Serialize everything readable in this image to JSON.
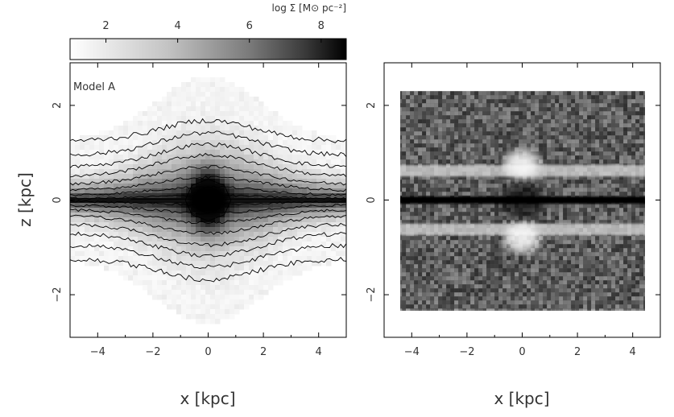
{
  "chart_data": [
    {
      "type": "heatmap",
      "annotation": "Model A",
      "xlabel": "x [kpc]",
      "ylabel": "z [kpc]",
      "xlim": [
        -5,
        5
      ],
      "ylim": [
        -2.9,
        2.9
      ],
      "x_ticks": [
        -4,
        -2,
        0,
        2,
        4
      ],
      "y_ticks": [
        -2,
        0,
        2
      ],
      "x_tick_labels": [
        "−4",
        "−2",
        "0",
        "2",
        "4"
      ],
      "y_tick_labels": [
        "−2",
        "0",
        "2"
      ],
      "colorbar": {
        "label": "log Σ [M⊙ pc⁻²]",
        "range": [
          1,
          8.7
        ],
        "ticks": [
          2,
          4,
          6,
          8
        ],
        "tick_labels": [
          "2",
          "4",
          "6",
          "8"
        ],
        "colormap": "white-to-black"
      },
      "contours": {
        "half_widths_kpc": [
          0.7,
          1.0,
          1.3,
          1.6,
          1.85,
          2.1
        ],
        "lines": [
          {
            "z_edge": 0.03,
            "z_peak": 0.1
          },
          {
            "z_edge": 0.1,
            "z_peak": 0.28
          },
          {
            "z_edge": 0.2,
            "z_peak": 0.48
          },
          {
            "z_edge": 0.33,
            "z_peak": 0.7
          },
          {
            "z_edge": 0.5,
            "z_peak": 0.95
          },
          {
            "z_edge": 0.7,
            "z_peak": 1.18
          },
          {
            "z_edge": 0.95,
            "z_peak": 1.42
          },
          {
            "z_edge": 1.25,
            "z_peak": 1.68
          }
        ]
      }
    },
    {
      "type": "heatmap",
      "xlabel": "x [kpc]",
      "ylabel": "",
      "xlim": [
        -5,
        5
      ],
      "ylim": [
        -2.9,
        2.9
      ],
      "x_ticks": [
        -4,
        -2,
        0,
        2,
        4
      ],
      "y_ticks": [
        -2,
        0,
        2
      ],
      "x_tick_labels": [
        "−4",
        "−2",
        "0",
        "2",
        "4"
      ],
      "y_tick_labels": [
        "−2",
        "0",
        "2"
      ],
      "data_extent": {
        "x": [
          -4.5,
          4.5
        ],
        "z": [
          -2.3,
          2.3
        ]
      },
      "features": {
        "dark_midplane_band_z": 0.08,
        "bright_bands_z": [
          0.62,
          -0.62
        ],
        "bright_blobs": [
          {
            "x": 0,
            "z": 0.75
          },
          {
            "x": 0,
            "z": -0.8
          }
        ]
      }
    }
  ]
}
